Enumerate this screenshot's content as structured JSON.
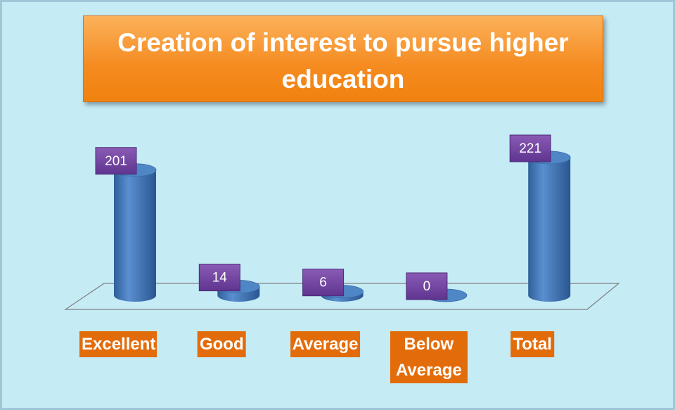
{
  "chart_data": {
    "type": "bar3d",
    "title": "Creation of interest to pursue higher education",
    "categories": [
      "Excellent",
      "Good",
      "Average",
      "Below Average",
      "Total"
    ],
    "values": [
      201,
      14,
      6,
      0,
      221
    ],
    "color": "#4f81bd"
  }
}
